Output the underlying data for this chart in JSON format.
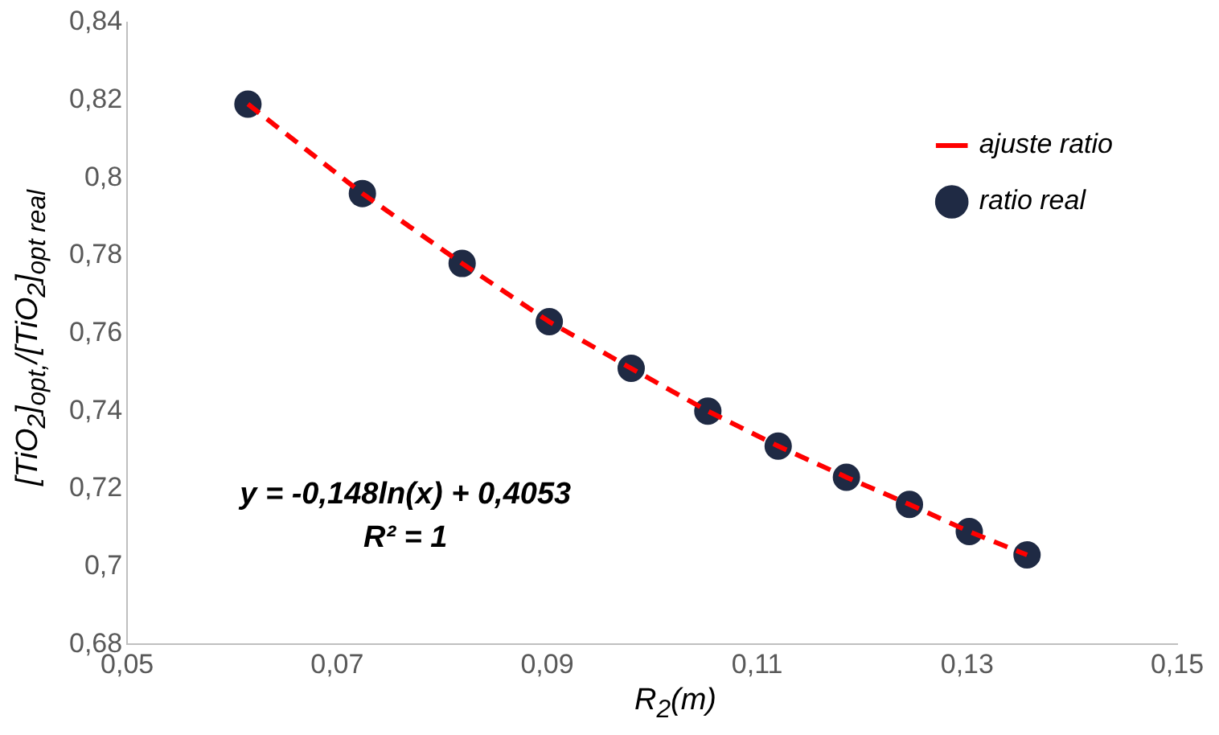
{
  "chart_data": {
    "type": "scatter",
    "xlabel": "R$_{2}$(m)",
    "ylabel": "[TiO$_{2}$]$_{opt,}$/[TiO$_{2}$]$_{opt real}$",
    "xlim": [
      0.05,
      0.15
    ],
    "xticks": [
      {
        "value": 0.05,
        "label": "0,05"
      },
      {
        "value": 0.07,
        "label": "0,07"
      },
      {
        "value": 0.09,
        "label": "0,09"
      },
      {
        "value": 0.11,
        "label": "0,11"
      },
      {
        "value": 0.13,
        "label": "0,13"
      },
      {
        "value": 0.15,
        "label": "0,15"
      }
    ],
    "ylim": [
      0.68,
      0.84
    ],
    "yticks": [
      {
        "value": 0.68,
        "label": "0,68"
      },
      {
        "value": 0.7,
        "label": "0,7"
      },
      {
        "value": 0.72,
        "label": "0,72"
      },
      {
        "value": 0.74,
        "label": "0,74"
      },
      {
        "value": 0.76,
        "label": "0,76"
      },
      {
        "value": 0.78,
        "label": "0,78"
      },
      {
        "value": 0.8,
        "label": "0,8"
      },
      {
        "value": 0.82,
        "label": "0,82"
      },
      {
        "value": 0.84,
        "label": "0,84"
      }
    ],
    "grid": false,
    "legend": "top right",
    "series": [
      {
        "name": "ratio real",
        "type": "scatter",
        "color": "#1f2a44",
        "marker": "circle",
        "x": [
          0.0615,
          0.0724,
          0.0819,
          0.0902,
          0.098,
          0.1053,
          0.112,
          0.1185,
          0.1245,
          0.1302,
          0.1357
        ],
        "values": [
          0.819,
          0.796,
          0.778,
          0.763,
          0.751,
          0.74,
          0.731,
          0.723,
          0.716,
          0.709,
          0.703
        ]
      },
      {
        "name": "ajuste ratio",
        "type": "line",
        "color": "#ff0000",
        "line_style": "dashed",
        "marker": "none",
        "x": [
          0.0615,
          0.0724,
          0.0819,
          0.0902,
          0.098,
          0.1053,
          0.112,
          0.1185,
          0.1245,
          0.1302,
          0.1357
        ],
        "values": [
          0.819,
          0.796,
          0.778,
          0.763,
          0.751,
          0.74,
          0.731,
          0.723,
          0.716,
          0.709,
          0.703
        ]
      }
    ],
    "annotations": [
      "y = -0,148ln(x) + 0,4053",
      "R² = 1"
    ]
  }
}
